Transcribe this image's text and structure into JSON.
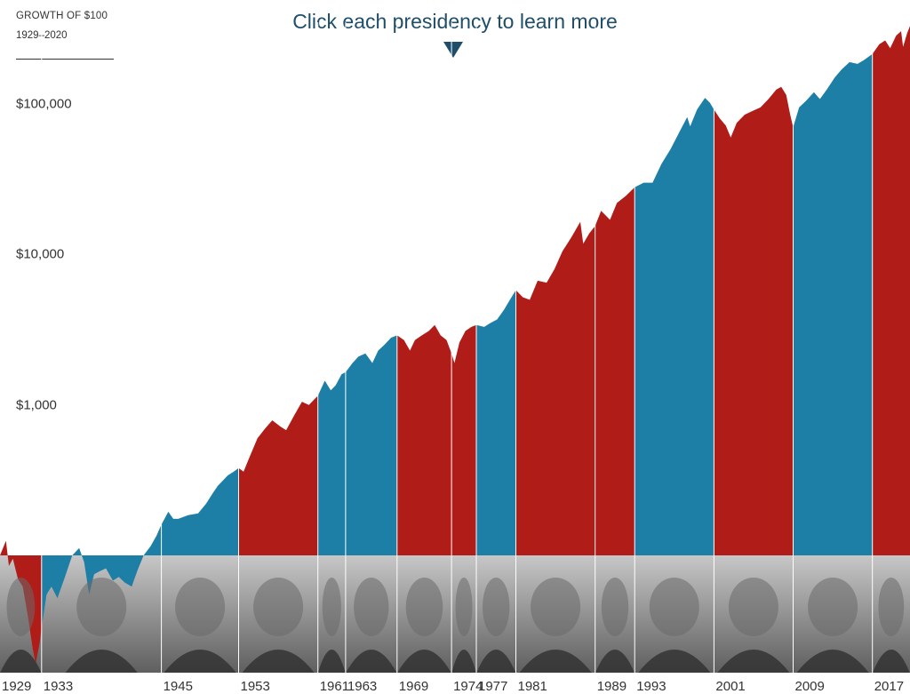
{
  "header": {
    "title": "GROWTH OF $100",
    "range": "1929–2020",
    "cta": "Click each presidency to learn more"
  },
  "colors": {
    "republican": "#b01c18",
    "democrat": "#1d7ea6",
    "photo_band": "#9a9a9a"
  },
  "chart_data": {
    "type": "area",
    "y_scale": "log",
    "x_range": [
      1929,
      2020.9
    ],
    "ylim": [
      100,
      350000
    ],
    "y_ticks": [
      1000,
      10000,
      100000
    ],
    "y_tick_labels": [
      "$1,000",
      "$10,000",
      "$100,000"
    ],
    "x_tick_labels": [
      "1929",
      "1933",
      "1945",
      "1953",
      "1961",
      "1963",
      "1969",
      "1974",
      "1977",
      "1981",
      "1989",
      "1993",
      "2001",
      "2009",
      "2017"
    ],
    "grid": false,
    "legend": "none",
    "presidencies": [
      {
        "start": 1929.0,
        "end": 1933.2,
        "party": "R",
        "label": "1929",
        "icon": "president-portrait-icon",
        "path": [
          [
            1929.0,
            100
          ],
          [
            1929.6,
            125
          ],
          [
            1929.9,
            85
          ],
          [
            1930.3,
            95
          ],
          [
            1930.8,
            70
          ],
          [
            1931.3,
            62
          ],
          [
            1931.8,
            40
          ],
          [
            1932.3,
            24
          ],
          [
            1932.6,
            19
          ],
          [
            1933.0,
            26
          ],
          [
            1933.2,
            33
          ]
        ]
      },
      {
        "start": 1933.2,
        "end": 1945.3,
        "party": "D",
        "label": "1933",
        "icon": "president-portrait-icon",
        "path": [
          [
            1933.2,
            33
          ],
          [
            1933.7,
            55
          ],
          [
            1934.2,
            62
          ],
          [
            1934.8,
            52
          ],
          [
            1935.5,
            70
          ],
          [
            1936.3,
            100
          ],
          [
            1937.0,
            112
          ],
          [
            1937.5,
            90
          ],
          [
            1938.0,
            55
          ],
          [
            1938.5,
            75
          ],
          [
            1939.0,
            78
          ],
          [
            1939.7,
            82
          ],
          [
            1940.4,
            68
          ],
          [
            1941.0,
            72
          ],
          [
            1941.6,
            66
          ],
          [
            1942.3,
            62
          ],
          [
            1942.9,
            80
          ],
          [
            1943.5,
            100
          ],
          [
            1944.2,
            115
          ],
          [
            1944.8,
            135
          ],
          [
            1945.3,
            160
          ]
        ]
      },
      {
        "start": 1945.3,
        "end": 1953.1,
        "party": "D",
        "label": "1945",
        "icon": "president-portrait-icon",
        "path": [
          [
            1945.3,
            160
          ],
          [
            1946.0,
            195
          ],
          [
            1946.5,
            175
          ],
          [
            1947.0,
            175
          ],
          [
            1948.0,
            185
          ],
          [
            1949.0,
            190
          ],
          [
            1949.8,
            220
          ],
          [
            1950.5,
            260
          ],
          [
            1951.0,
            290
          ],
          [
            1952.0,
            340
          ],
          [
            1952.6,
            360
          ],
          [
            1953.1,
            380
          ]
        ]
      },
      {
        "start": 1953.1,
        "end": 1961.1,
        "party": "R",
        "label": "1953",
        "icon": "president-portrait-icon",
        "path": [
          [
            1953.1,
            380
          ],
          [
            1953.6,
            360
          ],
          [
            1954.2,
            450
          ],
          [
            1955.0,
            600
          ],
          [
            1955.8,
            700
          ],
          [
            1956.5,
            790
          ],
          [
            1957.3,
            720
          ],
          [
            1957.9,
            680
          ],
          [
            1958.7,
            850
          ],
          [
            1959.5,
            1050
          ],
          [
            1960.2,
            1000
          ],
          [
            1960.8,
            1100
          ],
          [
            1961.1,
            1150
          ]
        ]
      },
      {
        "start": 1961.1,
        "end": 1963.9,
        "party": "D",
        "label": "1961",
        "icon": "president-portrait-icon",
        "path": [
          [
            1961.1,
            1150
          ],
          [
            1961.8,
            1450
          ],
          [
            1962.4,
            1250
          ],
          [
            1962.9,
            1350
          ],
          [
            1963.5,
            1600
          ],
          [
            1963.9,
            1650
          ]
        ]
      },
      {
        "start": 1963.9,
        "end": 1969.1,
        "party": "D",
        "label": "1963",
        "icon": "president-portrait-icon",
        "path": [
          [
            1963.9,
            1650
          ],
          [
            1964.6,
            1900
          ],
          [
            1965.2,
            2100
          ],
          [
            1965.9,
            2200
          ],
          [
            1966.6,
            1900
          ],
          [
            1967.2,
            2300
          ],
          [
            1967.8,
            2500
          ],
          [
            1968.5,
            2800
          ],
          [
            1969.1,
            2900
          ]
        ]
      },
      {
        "start": 1969.1,
        "end": 1974.6,
        "party": "R",
        "label": "1969",
        "icon": "president-portrait-icon",
        "path": [
          [
            1969.1,
            2900
          ],
          [
            1969.8,
            2700
          ],
          [
            1970.4,
            2300
          ],
          [
            1970.9,
            2700
          ],
          [
            1971.6,
            2900
          ],
          [
            1972.3,
            3100
          ],
          [
            1972.9,
            3400
          ],
          [
            1973.5,
            2900
          ],
          [
            1974.1,
            2700
          ],
          [
            1974.6,
            2200
          ]
        ]
      },
      {
        "start": 1974.6,
        "end": 1977.1,
        "party": "R",
        "label": "1974",
        "icon": "president-portrait-icon",
        "path": [
          [
            1974.6,
            2200
          ],
          [
            1974.9,
            1900
          ],
          [
            1975.4,
            2600
          ],
          [
            1976.0,
            3100
          ],
          [
            1976.6,
            3300
          ],
          [
            1977.1,
            3400
          ]
        ]
      },
      {
        "start": 1977.1,
        "end": 1981.1,
        "party": "D",
        "label": "1977",
        "icon": "president-portrait-icon",
        "path": [
          [
            1977.1,
            3400
          ],
          [
            1977.9,
            3300
          ],
          [
            1978.5,
            3500
          ],
          [
            1979.2,
            3700
          ],
          [
            1979.9,
            4300
          ],
          [
            1980.5,
            5000
          ],
          [
            1981.1,
            5800
          ]
        ]
      },
      {
        "start": 1981.1,
        "end": 1989.1,
        "party": "R",
        "label": "1981",
        "icon": "president-portrait-icon",
        "path": [
          [
            1981.1,
            5800
          ],
          [
            1981.8,
            5200
          ],
          [
            1982.5,
            5000
          ],
          [
            1983.3,
            6700
          ],
          [
            1984.2,
            6500
          ],
          [
            1985.0,
            8000
          ],
          [
            1985.8,
            10500
          ],
          [
            1986.7,
            13000
          ],
          [
            1987.6,
            16500
          ],
          [
            1987.9,
            11800
          ],
          [
            1988.5,
            13800
          ],
          [
            1989.1,
            15500
          ]
        ]
      },
      {
        "start": 1989.1,
        "end": 1993.1,
        "party": "R",
        "label": "1989",
        "icon": "president-portrait-icon",
        "path": [
          [
            1989.1,
            15500
          ],
          [
            1989.7,
            19500
          ],
          [
            1990.6,
            17000
          ],
          [
            1991.3,
            22000
          ],
          [
            1992.2,
            24500
          ],
          [
            1993.1,
            28000
          ]
        ]
      },
      {
        "start": 1993.1,
        "end": 2001.1,
        "party": "D",
        "label": "1993",
        "icon": "president-portrait-icon",
        "path": [
          [
            1993.1,
            28000
          ],
          [
            1994.0,
            30000
          ],
          [
            1994.9,
            30000
          ],
          [
            1995.8,
            40000
          ],
          [
            1996.7,
            50000
          ],
          [
            1997.6,
            65000
          ],
          [
            1998.4,
            82000
          ],
          [
            1998.7,
            71000
          ],
          [
            1999.4,
            92000
          ],
          [
            2000.2,
            110000
          ],
          [
            2000.7,
            102000
          ],
          [
            2001.1,
            92000
          ]
        ]
      },
      {
        "start": 2001.1,
        "end": 2009.1,
        "party": "R",
        "label": "2001",
        "icon": "president-portrait-icon",
        "path": [
          [
            2001.1,
            92000
          ],
          [
            2001.7,
            80000
          ],
          [
            2002.3,
            72000
          ],
          [
            2002.8,
            60000
          ],
          [
            2003.4,
            75000
          ],
          [
            2004.2,
            85000
          ],
          [
            2005.0,
            90000
          ],
          [
            2005.8,
            95000
          ],
          [
            2006.6,
            108000
          ],
          [
            2007.4,
            125000
          ],
          [
            2007.9,
            130000
          ],
          [
            2008.4,
            115000
          ],
          [
            2008.8,
            85000
          ],
          [
            2009.1,
            70000
          ]
        ]
      },
      {
        "start": 2009.1,
        "end": 2017.1,
        "party": "D",
        "label": "2009",
        "icon": "president-portrait-icon",
        "path": [
          [
            2009.1,
            70000
          ],
          [
            2009.7,
            95000
          ],
          [
            2010.4,
            105000
          ],
          [
            2011.2,
            120000
          ],
          [
            2011.8,
            108000
          ],
          [
            2012.5,
            125000
          ],
          [
            2013.3,
            150000
          ],
          [
            2014.0,
            170000
          ],
          [
            2014.8,
            190000
          ],
          [
            2015.6,
            185000
          ],
          [
            2016.2,
            195000
          ],
          [
            2017.1,
            215000
          ]
        ]
      },
      {
        "start": 2017.1,
        "end": 2020.9,
        "party": "R",
        "label": "2017",
        "icon": "president-portrait-icon",
        "path": [
          [
            2017.1,
            215000
          ],
          [
            2017.8,
            250000
          ],
          [
            2018.4,
            265000
          ],
          [
            2018.9,
            235000
          ],
          [
            2019.5,
            285000
          ],
          [
            2020.0,
            305000
          ],
          [
            2020.2,
            240000
          ],
          [
            2020.6,
            295000
          ],
          [
            2020.9,
            330000
          ]
        ]
      }
    ]
  }
}
